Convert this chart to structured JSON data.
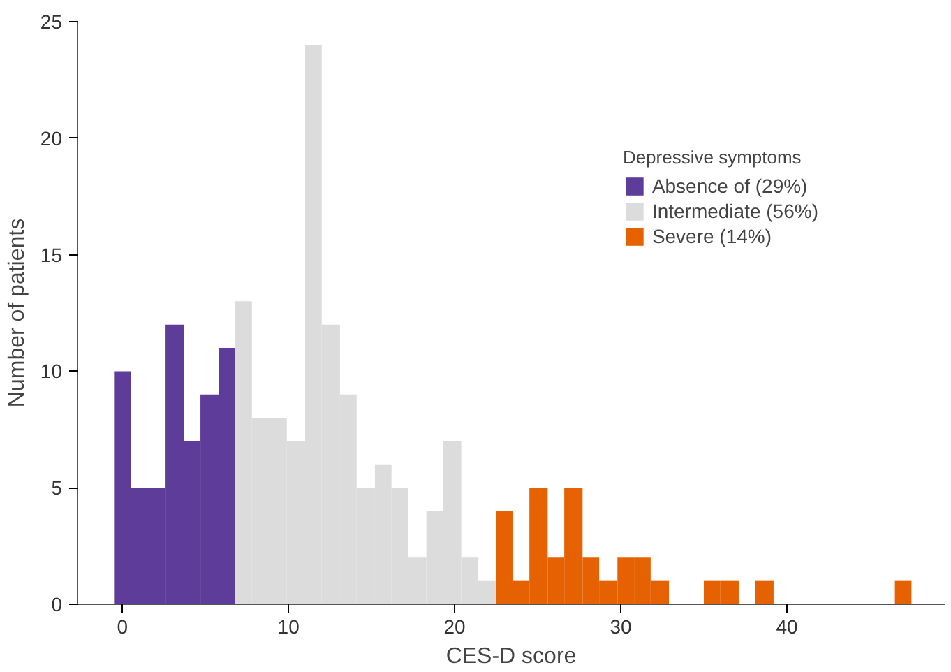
{
  "chart_data": {
    "type": "histogram",
    "xlabel": "CES-D score",
    "ylabel": "Number of patients",
    "legend_title": "Depressive symptoms",
    "legend": "top right",
    "bins": [
      -0.5,
      0.5,
      1.6,
      2.6,
      3.7,
      4.7,
      5.8,
      6.8,
      7.8,
      8.9,
      9.9,
      11.0,
      12.0,
      13.1,
      14.1,
      15.2,
      16.2,
      17.2,
      18.3,
      19.3,
      20.4,
      21.4,
      22.5,
      23.5,
      24.5,
      25.6,
      26.6,
      27.7,
      28.7,
      29.8,
      30.8,
      31.8,
      32.9,
      35.0,
      36.0,
      37.1,
      38.1,
      39.2,
      46.5,
      47.5
    ],
    "series": [
      {
        "name": "Absence of (29%)",
        "color": "#5e3c99",
        "values": [
          10,
          5,
          5,
          12,
          7,
          9,
          11,
          null,
          null,
          null,
          null,
          null,
          null,
          null,
          null,
          null,
          null,
          null,
          null,
          null,
          null,
          null,
          null,
          null,
          null,
          null,
          null,
          null,
          null,
          null,
          null,
          null,
          null,
          null,
          null,
          null,
          null,
          null,
          null
        ]
      },
      {
        "name": "Intermediate (56%)",
        "color": "#dcdcdc",
        "values": [
          null,
          null,
          null,
          null,
          null,
          null,
          null,
          13,
          8,
          8,
          7,
          24,
          12,
          9,
          5,
          6,
          5,
          2,
          4,
          7,
          2,
          1,
          null,
          null,
          null,
          null,
          null,
          null,
          null,
          null,
          null,
          null,
          null,
          null,
          null,
          null,
          null,
          null,
          null
        ]
      },
      {
        "name": "Severe (14%)",
        "color": "#e66101",
        "values": [
          null,
          null,
          null,
          null,
          null,
          null,
          null,
          null,
          null,
          null,
          null,
          null,
          null,
          null,
          null,
          null,
          null,
          null,
          null,
          null,
          null,
          null,
          4,
          1,
          5,
          2,
          5,
          2,
          1,
          2,
          2,
          1,
          0,
          1,
          1,
          0,
          1,
          0,
          1
        ]
      }
    ],
    "xlim": [
      -2.7,
      49.5
    ],
    "ylim": [
      0,
      25
    ],
    "xticks": [
      0,
      10,
      20,
      30,
      40
    ],
    "yticks": [
      0,
      5,
      10,
      15,
      20,
      25
    ],
    "grid": false
  }
}
